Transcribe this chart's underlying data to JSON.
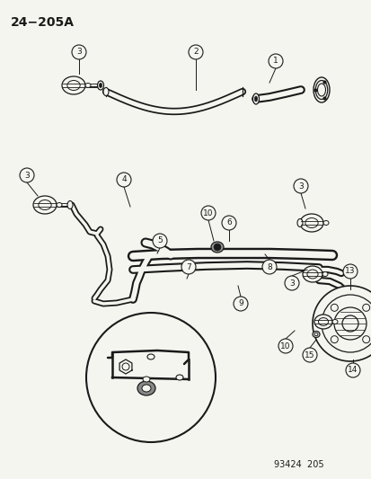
{
  "title": "24−205A",
  "footer": "93424  205",
  "background_color": "#f5f5f0",
  "line_color": "#1a1a1a",
  "fig_width": 4.14,
  "fig_height": 5.33,
  "dpi": 100
}
